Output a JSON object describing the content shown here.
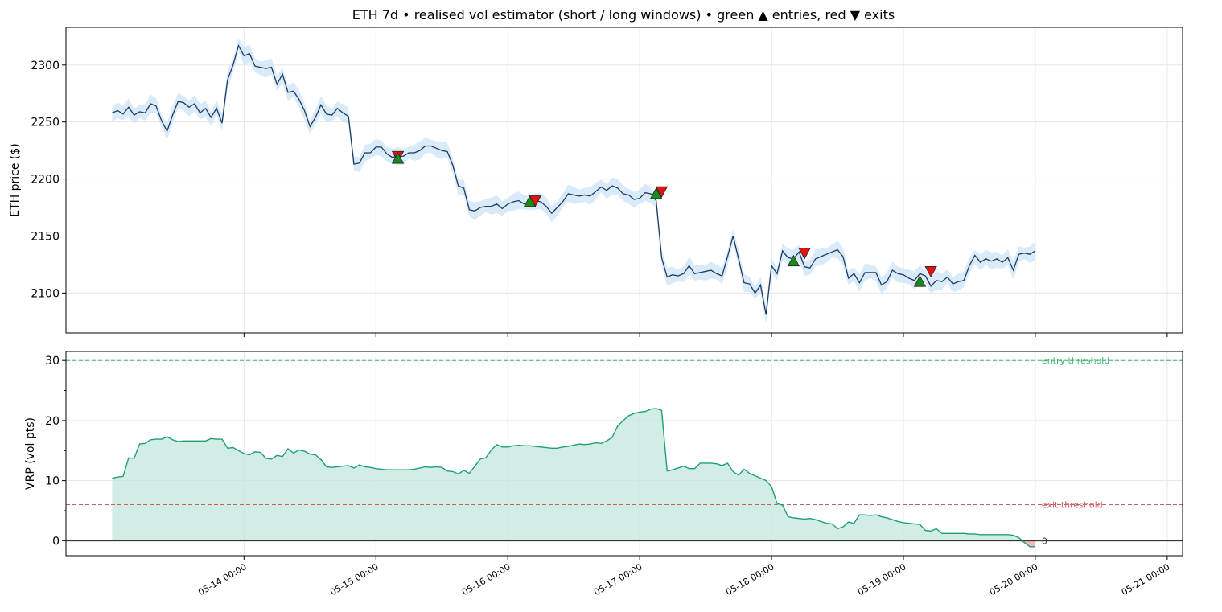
{
  "chart_data": {
    "type": "line",
    "title": "ETH 7d • realised vol estimator (short / long windows) • green ▲ entries, red ▼ exits",
    "colors": {
      "price_line": "#1f3a5f",
      "price_band": "#cfe6f7",
      "vrp_line": "#1f9e7a",
      "vrp_fill": "#bfe6da",
      "vrp_negative_fill": "#f4a7a7",
      "entry_marker": "#1a8a1a",
      "exit_marker": "#e01414",
      "entry_threshold": "#3cb371",
      "exit_threshold": "#cd5c5c",
      "zero_line": "#333333",
      "grid": "#e6e6e6"
    },
    "x_axis": {
      "tick_labels": [
        "05-14 00:00",
        "05-15 00:00",
        "05-16 00:00",
        "05-17 00:00",
        "05-18 00:00",
        "05-19 00:00",
        "05-20 00:00",
        "05-21 00:00"
      ],
      "tick_values": [
        24,
        48,
        72,
        96,
        120,
        144,
        168,
        192
      ],
      "xlim": [
        -8.4,
        194.8
      ]
    },
    "price_panel": {
      "ylabel": "ETH price ($)",
      "ylim": [
        2065,
        2333
      ],
      "yticks": [
        2100,
        2150,
        2200,
        2250,
        2300
      ],
      "band_width": 8,
      "x": [
        0,
        1,
        2,
        3,
        4,
        5,
        6,
        7,
        8,
        9,
        10,
        11,
        12,
        13,
        14,
        15,
        16,
        17,
        18,
        19,
        20,
        21,
        22,
        23,
        24,
        25,
        26,
        27,
        28,
        29,
        30,
        31,
        32,
        33,
        34,
        35,
        36,
        37,
        38,
        39,
        40,
        41,
        42,
        43,
        44,
        45,
        46,
        47,
        48,
        49,
        50,
        51,
        52,
        53,
        54,
        55,
        56,
        57,
        58,
        59,
        60,
        61,
        62,
        63,
        64,
        65,
        66,
        67,
        68,
        69,
        70,
        71,
        72,
        73,
        74,
        75,
        76,
        77,
        78,
        79,
        80,
        81,
        82,
        83,
        84,
        85,
        86,
        87,
        88,
        89,
        90,
        91,
        92,
        93,
        94,
        95,
        96,
        97,
        98,
        99,
        100,
        101,
        102,
        103,
        104,
        105,
        106,
        107,
        108,
        109,
        110,
        111,
        112,
        113,
        114,
        115,
        116,
        117,
        118,
        119,
        120,
        121,
        122,
        123,
        124,
        125,
        126,
        127,
        128,
        129,
        130,
        131,
        132,
        133,
        134,
        135,
        136,
        137,
        138,
        139,
        140,
        141,
        142,
        143,
        144,
        145,
        146,
        147,
        148,
        149,
        150,
        151,
        152,
        153,
        154,
        155,
        156,
        157,
        158,
        159,
        160,
        161,
        162,
        163,
        164,
        165,
        166,
        167,
        168
      ],
      "values": [
        2258,
        2260,
        2257,
        2263,
        2256,
        2259,
        2258,
        2266,
        2264,
        2251,
        2242,
        2256,
        2268,
        2267,
        2263,
        2266,
        2258,
        2262,
        2254,
        2262,
        2249,
        2287,
        2300,
        2317,
        2308,
        2310,
        2299,
        2298,
        2297,
        2298,
        2283,
        2292,
        2276,
        2277,
        2270,
        2260,
        2246,
        2254,
        2265,
        2257,
        2256,
        2262,
        2258,
        2255,
        2213,
        2214,
        2223,
        2223,
        2228,
        2228,
        2222,
        2219,
        2220,
        2220,
        2223,
        2223,
        2225,
        2229,
        2229,
        2227,
        2225,
        2224,
        2212,
        2194,
        2192,
        2173,
        2172,
        2175,
        2176,
        2176,
        2178,
        2174,
        2178,
        2180,
        2181,
        2178,
        2180,
        2181,
        2180,
        2176,
        2170,
        2175,
        2180,
        2187,
        2186,
        2185,
        2186,
        2185,
        2189,
        2193,
        2190,
        2194,
        2192,
        2187,
        2186,
        2182,
        2183,
        2188,
        2187,
        2181,
        2131,
        2114,
        2116,
        2115,
        2117,
        2124,
        2117,
        2118,
        2119,
        2120,
        2117,
        2115,
        2132,
        2150,
        2130,
        2109,
        2108,
        2100,
        2107,
        2081,
        2124,
        2117,
        2137,
        2131,
        2130,
        2136,
        2123,
        2122,
        2130,
        2132,
        2134,
        2136,
        2138,
        2132,
        2113,
        2117,
        2109,
        2118,
        2118,
        2118,
        2107,
        2110,
        2120,
        2117,
        2116,
        2113,
        2111,
        2117,
        2115,
        2106,
        2111,
        2110,
        2114,
        2108,
        2110,
        2111,
        2124,
        2133,
        2127,
        2130,
        2128,
        2130,
        2127,
        2131,
        2120,
        2134,
        2135,
        2134,
        2137
      ],
      "entries": [
        {
          "x": 52,
          "y": 2218
        },
        {
          "x": 76,
          "y": 2180
        },
        {
          "x": 99,
          "y": 2187
        },
        {
          "x": 124,
          "y": 2128
        },
        {
          "x": 147,
          "y": 2110
        }
      ],
      "exits": [
        {
          "x": 52,
          "y": 2220
        },
        {
          "x": 77,
          "y": 2181
        },
        {
          "x": 100,
          "y": 2189
        },
        {
          "x": 126,
          "y": 2135
        },
        {
          "x": 149,
          "y": 2119
        }
      ]
    },
    "vrp_panel": {
      "ylabel": "VRP (vol pts)",
      "ylim": [
        -2.5,
        31.5
      ],
      "yticks": [
        0,
        10,
        20,
        30
      ],
      "entry_threshold": 30,
      "exit_threshold": 6,
      "entry_threshold_label": "entry threshold",
      "exit_threshold_label": "exit threshold",
      "zero_label": "0",
      "x": [
        0,
        1,
        2,
        3,
        4,
        5,
        6,
        7,
        8,
        9,
        10,
        11,
        12,
        13,
        14,
        15,
        16,
        17,
        18,
        19,
        20,
        21,
        22,
        23,
        24,
        25,
        26,
        27,
        28,
        29,
        30,
        31,
        32,
        33,
        34,
        35,
        36,
        37,
        38,
        39,
        40,
        41,
        42,
        43,
        44,
        45,
        46,
        47,
        48,
        49,
        50,
        51,
        52,
        53,
        54,
        55,
        56,
        57,
        58,
        59,
        60,
        61,
        62,
        63,
        64,
        65,
        66,
        67,
        68,
        69,
        70,
        71,
        72,
        73,
        74,
        75,
        76,
        77,
        78,
        79,
        80,
        81,
        82,
        83,
        84,
        85,
        86,
        87,
        88,
        89,
        90,
        91,
        92,
        93,
        94,
        95,
        96,
        97,
        98,
        99,
        100,
        101,
        102,
        103,
        104,
        105,
        106,
        107,
        108,
        109,
        110,
        111,
        112,
        113,
        114,
        115,
        116,
        117,
        118,
        119,
        120,
        121,
        122,
        123,
        124,
        125,
        126,
        127,
        128,
        129,
        130,
        131,
        132,
        133,
        134,
        135,
        136,
        137,
        138,
        139,
        140,
        141,
        142,
        143,
        144,
        145,
        146,
        147,
        148,
        149,
        150,
        151,
        152,
        153,
        154,
        155,
        156,
        157,
        158,
        159,
        160,
        161,
        162,
        163,
        164,
        165,
        166,
        167,
        168
      ],
      "values": [
        10.4,
        10.6,
        10.7,
        13.8,
        13.7,
        16.1,
        16.2,
        16.8,
        16.9,
        16.9,
        17.3,
        16.8,
        16.5,
        16.6,
        16.6,
        16.6,
        16.6,
        16.6,
        17.0,
        16.9,
        16.9,
        15.4,
        15.5,
        15.0,
        14.5,
        14.3,
        14.8,
        14.7,
        13.7,
        13.6,
        14.2,
        14.0,
        15.3,
        14.6,
        15.1,
        14.9,
        14.4,
        14.3,
        13.5,
        12.3,
        12.2,
        12.3,
        12.4,
        12.5,
        12.1,
        12.6,
        12.3,
        12.2,
        12.0,
        11.9,
        11.8,
        11.8,
        11.8,
        11.8,
        11.8,
        11.9,
        12.1,
        12.3,
        12.2,
        12.3,
        12.2,
        11.6,
        11.5,
        11.1,
        11.7,
        11.2,
        12.4,
        13.6,
        13.8,
        15.1,
        16.0,
        15.6,
        15.6,
        15.8,
        15.9,
        15.8,
        15.8,
        15.7,
        15.6,
        15.5,
        15.4,
        15.4,
        15.6,
        15.7,
        15.9,
        16.1,
        16.0,
        16.1,
        16.3,
        16.2,
        16.6,
        17.2,
        19.1,
        20.0,
        20.8,
        21.2,
        21.4,
        21.5,
        21.9,
        22.0,
        21.7,
        11.6,
        11.8,
        12.1,
        12.4,
        12.0,
        12.0,
        12.9,
        12.9,
        12.9,
        12.8,
        12.5,
        12.9,
        11.5,
        10.9,
        11.9,
        11.2,
        10.8,
        10.4,
        10.0,
        9.0,
        6.2,
        5.9,
        4.0,
        3.8,
        3.7,
        3.6,
        3.7,
        3.5,
        3.2,
        2.9,
        2.8,
        2.0,
        2.3,
        3.1,
        2.9,
        4.3,
        4.3,
        4.2,
        4.3,
        4.0,
        3.8,
        3.5,
        3.2,
        3.0,
        2.9,
        2.8,
        2.7,
        1.7,
        1.6,
        2.0,
        1.2,
        1.2,
        1.2,
        1.2,
        1.2,
        1.1,
        1.1,
        1.0,
        1.0,
        1.0,
        1.0,
        1.0,
        1.0,
        0.9,
        0.5,
        -0.3,
        -1.0,
        -1.0
      ]
    }
  }
}
